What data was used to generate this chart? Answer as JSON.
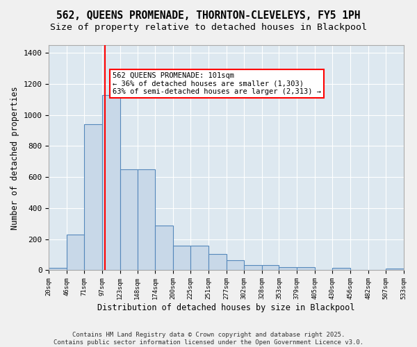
{
  "title1": "562, QUEENS PROMENADE, THORNTON-CLEVELEYS, FY5 1PH",
  "title2": "Size of property relative to detached houses in Blackpool",
  "xlabel": "Distribution of detached houses by size in Blackpool",
  "ylabel": "Number of detached properties",
  "bin_edges": [
    20,
    46,
    71,
    97,
    123,
    148,
    174,
    200,
    225,
    251,
    277,
    302,
    328,
    353,
    379,
    405,
    430,
    456,
    482,
    507,
    533
  ],
  "bar_heights": [
    15,
    230,
    940,
    1130,
    650,
    650,
    290,
    160,
    160,
    105,
    65,
    35,
    35,
    20,
    20,
    0,
    15,
    0,
    0,
    10
  ],
  "bar_color": "#c8d8e8",
  "bar_edgecolor": "#5588bb",
  "vline_x": 101,
  "vline_color": "red",
  "annotation_text": "562 QUEENS PROMENADE: 101sqm\n← 36% of detached houses are smaller (1,303)\n63% of semi-detached houses are larger (2,313) →",
  "ylim": [
    0,
    1450
  ],
  "background_color": "#dde8f0",
  "grid_color": "#ffffff",
  "footer_text": "Contains HM Land Registry data © Crown copyright and database right 2025.\nContains public sector information licensed under the Open Government Licence v3.0.",
  "title_fontsize": 10.5,
  "subtitle_fontsize": 9.5,
  "annot_fontsize": 7.5,
  "footer_fontsize": 6.5
}
